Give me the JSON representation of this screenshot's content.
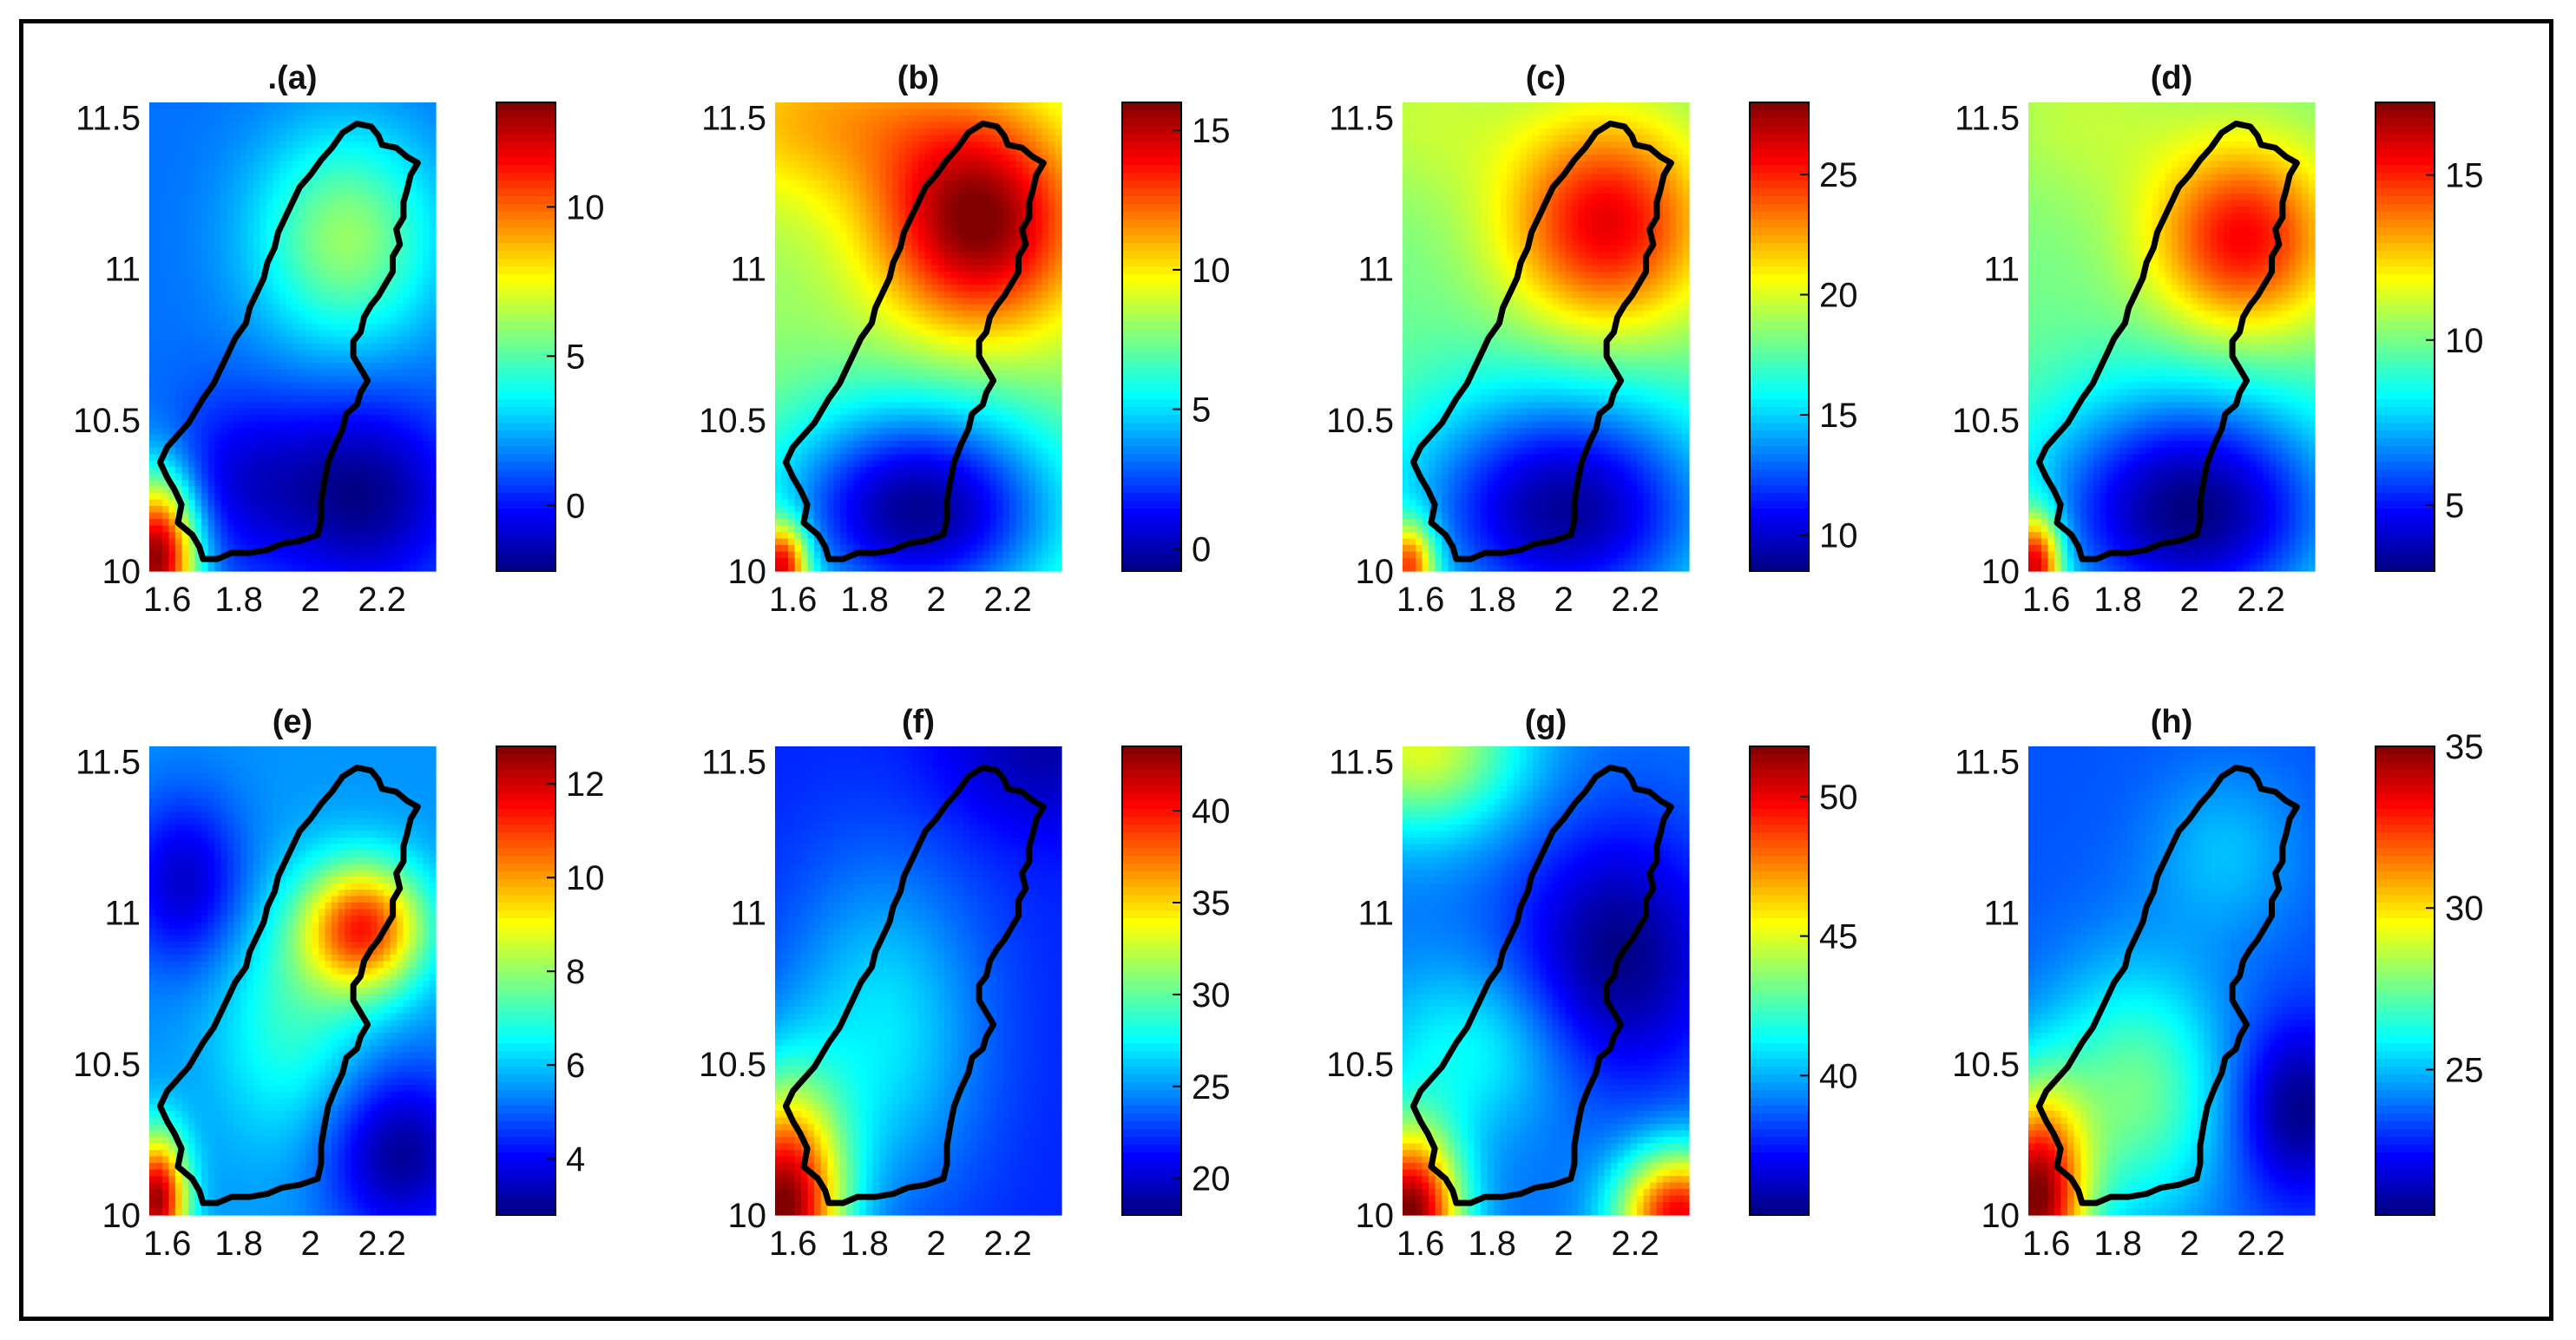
{
  "chart_data": {
    "type": "heatmap",
    "x_axis": {
      "ticks": [
        1.6,
        1.8,
        2,
        2.2
      ],
      "range": [
        1.55,
        2.35
      ]
    },
    "y_axis": {
      "ticks": [
        10,
        10.5,
        11,
        11.5
      ],
      "range": [
        10,
        11.55
      ]
    },
    "colormap": "jet",
    "panels": [
      {
        "title": ".(a)",
        "colorbar": {
          "ticks": [
            0,
            5,
            10
          ],
          "range": [
            -2.2,
            13.5
          ]
        },
        "field": {
          "base": 1.5,
          "sources": [
            {
              "x": 1.57,
              "y": 10.05,
              "amp": 12.0,
              "sx": 0.08,
              "sy": 0.18
            },
            {
              "x": 2.1,
              "y": 11.1,
              "amp": 4.5,
              "sx": 0.18,
              "sy": 0.25
            },
            {
              "x": 2.15,
              "y": 10.25,
              "amp": -3.5,
              "sx": 0.18,
              "sy": 0.22
            },
            {
              "x": 1.8,
              "y": 10.3,
              "amp": -2.0,
              "sx": 0.15,
              "sy": 0.2
            }
          ]
        }
      },
      {
        "title": "(b)",
        "colorbar": {
          "ticks": [
            0,
            5,
            10,
            15
          ],
          "range": [
            -0.8,
            16
          ]
        },
        "field": {
          "base": 8,
          "sources": [
            {
              "x": 2.12,
              "y": 11.15,
              "amp": 8.0,
              "sx": 0.2,
              "sy": 0.25
            },
            {
              "x": 1.95,
              "y": 10.2,
              "amp": -8.5,
              "sx": 0.28,
              "sy": 0.25
            },
            {
              "x": 1.57,
              "y": 10.02,
              "amp": 9.0,
              "sx": 0.05,
              "sy": 0.1
            },
            {
              "x": 1.7,
              "y": 11.5,
              "amp": 3.0,
              "sx": 0.3,
              "sy": 0.2
            }
          ]
        }
      },
      {
        "title": "(c)",
        "colorbar": {
          "ticks": [
            10,
            15,
            20,
            25
          ],
          "range": [
            8.5,
            28
          ]
        },
        "field": {
          "base": 18,
          "sources": [
            {
              "x": 2.12,
              "y": 11.15,
              "amp": 8.0,
              "sx": 0.2,
              "sy": 0.25
            },
            {
              "x": 2.0,
              "y": 10.2,
              "amp": -9.0,
              "sx": 0.3,
              "sy": 0.28
            },
            {
              "x": 1.57,
              "y": 10.02,
              "amp": 9.0,
              "sx": 0.05,
              "sy": 0.1
            },
            {
              "x": 1.6,
              "y": 11.5,
              "amp": 1.5,
              "sx": 0.2,
              "sy": 0.2
            }
          ]
        }
      },
      {
        "title": "(d)",
        "colorbar": {
          "ticks": [
            5,
            10,
            15
          ],
          "range": [
            3,
            17.2
          ]
        },
        "field": {
          "base": 10,
          "sources": [
            {
              "x": 2.15,
              "y": 11.1,
              "amp": 5.5,
              "sx": 0.18,
              "sy": 0.22
            },
            {
              "x": 2.0,
              "y": 10.2,
              "amp": -7.0,
              "sx": 0.3,
              "sy": 0.28
            },
            {
              "x": 1.57,
              "y": 10.02,
              "amp": 8.0,
              "sx": 0.05,
              "sy": 0.12
            },
            {
              "x": 1.7,
              "y": 11.5,
              "amp": 1.0,
              "sx": 0.2,
              "sy": 0.2
            }
          ]
        }
      },
      {
        "title": "(e)",
        "colorbar": {
          "ticks": [
            4,
            6,
            8,
            10,
            12
          ],
          "range": [
            2.8,
            12.8
          ]
        },
        "field": {
          "base": 5.5,
          "sources": [
            {
              "x": 2.15,
              "y": 10.95,
              "amp": 5.5,
              "sx": 0.12,
              "sy": 0.15
            },
            {
              "x": 1.57,
              "y": 10.05,
              "amp": 7.0,
              "sx": 0.06,
              "sy": 0.15
            },
            {
              "x": 2.25,
              "y": 10.2,
              "amp": -2.5,
              "sx": 0.15,
              "sy": 0.2
            },
            {
              "x": 1.65,
              "y": 11.1,
              "amp": -2.0,
              "sx": 0.12,
              "sy": 0.2
            },
            {
              "x": 1.95,
              "y": 10.65,
              "amp": 1.5,
              "sx": 0.15,
              "sy": 0.3
            }
          ]
        }
      },
      {
        "title": "(f)",
        "colorbar": {
          "ticks": [
            20,
            25,
            30,
            35,
            40
          ],
          "range": [
            18,
            43.5
          ]
        },
        "field": {
          "base": 22,
          "sources": [
            {
              "x": 1.57,
              "y": 10.02,
              "amp": 21.0,
              "sx": 0.12,
              "sy": 0.28
            },
            {
              "x": 1.85,
              "y": 10.6,
              "amp": 5.0,
              "sx": 0.2,
              "sy": 0.4
            },
            {
              "x": 2.3,
              "y": 11.55,
              "amp": -3.0,
              "sx": 0.2,
              "sy": 0.2
            }
          ]
        }
      },
      {
        "title": "(g)",
        "colorbar": {
          "ticks": [
            40,
            45,
            50
          ],
          "range": [
            35,
            51.8
          ]
        },
        "field": {
          "base": 39,
          "sources": [
            {
              "x": 1.57,
              "y": 10.0,
              "amp": 13.0,
              "sx": 0.1,
              "sy": 0.2
            },
            {
              "x": 2.32,
              "y": 10.0,
              "amp": 11.0,
              "sx": 0.12,
              "sy": 0.15
            },
            {
              "x": 1.6,
              "y": 11.55,
              "amp": 6.0,
              "sx": 0.2,
              "sy": 0.2
            },
            {
              "x": 2.15,
              "y": 10.85,
              "amp": -4.0,
              "sx": 0.2,
              "sy": 0.3
            },
            {
              "x": 1.75,
              "y": 10.55,
              "amp": 2.5,
              "sx": 0.2,
              "sy": 0.2
            }
          ]
        }
      },
      {
        "title": "(h)",
        "colorbar": {
          "ticks": [
            25,
            30,
            35
          ],
          "range": [
            20.5,
            35
          ]
        },
        "field": {
          "base": 23.5,
          "sources": [
            {
              "x": 1.57,
              "y": 10.05,
              "amp": 11.0,
              "sx": 0.1,
              "sy": 0.25
            },
            {
              "x": 1.85,
              "y": 10.4,
              "amp": 4.0,
              "sx": 0.18,
              "sy": 0.3
            },
            {
              "x": 2.1,
              "y": 11.2,
              "amp": 1.5,
              "sx": 0.15,
              "sy": 0.2
            },
            {
              "x": 2.3,
              "y": 10.35,
              "amp": -3.0,
              "sx": 0.12,
              "sy": 0.2
            }
          ]
        }
      }
    ],
    "boundary": [
      [
        2.13,
        11.48
      ],
      [
        2.17,
        11.47
      ],
      [
        2.19,
        11.44
      ],
      [
        2.2,
        11.41
      ],
      [
        2.24,
        11.4
      ],
      [
        2.27,
        11.37
      ],
      [
        2.3,
        11.35
      ],
      [
        2.28,
        11.31
      ],
      [
        2.27,
        11.26
      ],
      [
        2.26,
        11.22
      ],
      [
        2.26,
        11.17
      ],
      [
        2.24,
        11.13
      ],
      [
        2.25,
        11.08
      ],
      [
        2.23,
        11.04
      ],
      [
        2.23,
        10.99
      ],
      [
        2.21,
        10.95
      ],
      [
        2.19,
        10.91
      ],
      [
        2.17,
        10.88
      ],
      [
        2.15,
        10.84
      ],
      [
        2.14,
        10.79
      ],
      [
        2.12,
        10.76
      ],
      [
        2.12,
        10.71
      ],
      [
        2.14,
        10.67
      ],
      [
        2.16,
        10.63
      ],
      [
        2.14,
        10.59
      ],
      [
        2.13,
        10.55
      ],
      [
        2.1,
        10.52
      ],
      [
        2.09,
        10.47
      ],
      [
        2.07,
        10.42
      ],
      [
        2.05,
        10.36
      ],
      [
        2.04,
        10.3
      ],
      [
        2.03,
        10.23
      ],
      [
        2.03,
        10.17
      ],
      [
        2.02,
        10.12
      ],
      [
        1.97,
        10.1
      ],
      [
        1.92,
        10.09
      ],
      [
        1.88,
        10.07
      ],
      [
        1.83,
        10.06
      ],
      [
        1.78,
        10.06
      ],
      [
        1.74,
        10.04
      ],
      [
        1.7,
        10.04
      ],
      [
        1.69,
        10.08
      ],
      [
        1.67,
        10.12
      ],
      [
        1.63,
        10.16
      ],
      [
        1.64,
        10.22
      ],
      [
        1.62,
        10.27
      ],
      [
        1.6,
        10.31
      ],
      [
        1.58,
        10.36
      ],
      [
        1.6,
        10.41
      ],
      [
        1.63,
        10.45
      ],
      [
        1.66,
        10.49
      ],
      [
        1.68,
        10.53
      ],
      [
        1.7,
        10.57
      ],
      [
        1.73,
        10.62
      ],
      [
        1.75,
        10.67
      ],
      [
        1.77,
        10.72
      ],
      [
        1.79,
        10.77
      ],
      [
        1.82,
        10.82
      ],
      [
        1.83,
        10.87
      ],
      [
        1.85,
        10.92
      ],
      [
        1.87,
        10.97
      ],
      [
        1.88,
        11.02
      ],
      [
        1.9,
        11.07
      ],
      [
        1.91,
        11.12
      ],
      [
        1.93,
        11.17
      ],
      [
        1.95,
        11.22
      ],
      [
        1.97,
        11.27
      ],
      [
        2.0,
        11.31
      ],
      [
        2.03,
        11.36
      ],
      [
        2.06,
        11.4
      ],
      [
        2.09,
        11.45
      ],
      [
        2.13,
        11.48
      ]
    ]
  }
}
